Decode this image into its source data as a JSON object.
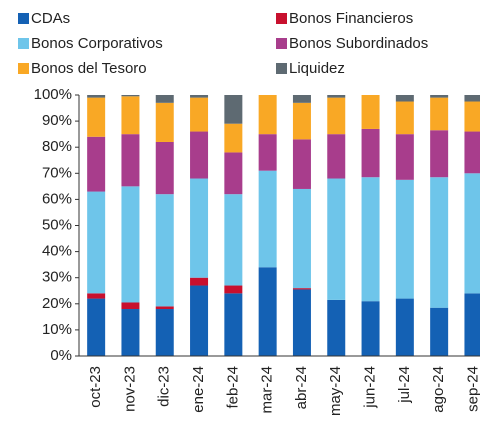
{
  "chart_data": {
    "type": "stacked-bar",
    "categories": [
      "oct-23",
      "nov-23",
      "dic-23",
      "ene-24",
      "feb-24",
      "mar-24",
      "abr-24",
      "may-24",
      "jun-24",
      "jul-24",
      "ago-24",
      "sep-24"
    ],
    "series": [
      {
        "name": "CDAs",
        "color": "#1461b4",
        "values": [
          22,
          18,
          18,
          27,
          24,
          34,
          25.5,
          21.5,
          21,
          22,
          18.5,
          24
        ]
      },
      {
        "name": "Bonos Financieros",
        "color": "#c8102e",
        "values": [
          2,
          2.5,
          1,
          3,
          3,
          0,
          0.5,
          0,
          0,
          0,
          0,
          0
        ]
      },
      {
        "name": "Bonos Corporativos",
        "color": "#6ec5ea",
        "values": [
          39,
          44.5,
          43,
          38,
          35,
          37,
          38,
          46.5,
          47.5,
          45.5,
          50,
          46
        ]
      },
      {
        "name": "Bonos Subordinados",
        "color": "#a83d8c",
        "values": [
          21,
          20,
          20,
          18,
          16,
          14,
          19,
          17,
          18.5,
          17.5,
          18,
          16
        ]
      },
      {
        "name": "Bonos del Tesoro",
        "color": "#f9a825",
        "values": [
          15,
          14.5,
          15,
          13,
          11,
          15,
          14,
          14,
          13,
          12.5,
          12.5,
          11.5
        ]
      },
      {
        "name": "Liquidez",
        "color": "#5e6a72",
        "values": [
          1,
          0.5,
          3,
          1,
          11,
          0,
          3,
          1,
          0,
          2.5,
          1,
          2.5
        ]
      }
    ],
    "ylim": [
      0,
      100
    ],
    "yticks": [
      {
        "value": 0,
        "label": "0%"
      },
      {
        "value": 10,
        "label": "10%"
      },
      {
        "value": 20,
        "label": "20%"
      },
      {
        "value": 30,
        "label": "30%"
      },
      {
        "value": 40,
        "label": "40%"
      },
      {
        "value": 50,
        "label": "50%"
      },
      {
        "value": 60,
        "label": "60%"
      },
      {
        "value": 70,
        "label": "70%"
      },
      {
        "value": 80,
        "label": "80%"
      },
      {
        "value": 90,
        "label": "90%"
      },
      {
        "value": 100,
        "label": "100%"
      }
    ],
    "grid": false
  }
}
